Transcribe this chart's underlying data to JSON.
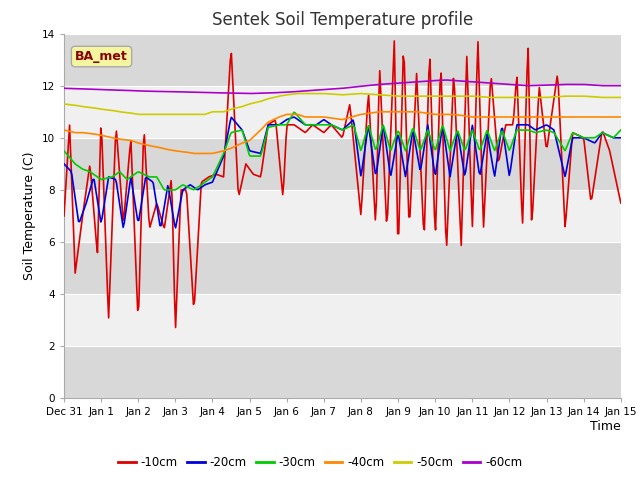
{
  "title": "Sentek Soil Temperature profile",
  "xlabel": "Time",
  "ylabel": "Soil Temperature (C)",
  "ylim": [
    0,
    14
  ],
  "yticks": [
    0,
    2,
    4,
    6,
    8,
    10,
    12,
    14
  ],
  "background_color": "#ffffff",
  "plot_bg_color": "#ffffff",
  "band_colors": [
    "#d8d8d8",
    "#f0f0f0"
  ],
  "legend_label": "BA_met",
  "legend_text_color": "#8b0000",
  "legend_box_facecolor": "#f5f5a0",
  "legend_box_edgecolor": "#aaaaaa",
  "colors": {
    "-10cm": "#dd0000",
    "-20cm": "#0000dd",
    "-30cm": "#00cc00",
    "-40cm": "#ff8800",
    "-50cm": "#cccc00",
    "-60cm": "#aa00cc"
  },
  "x_tick_labels": [
    "Dec 31",
    "Jan 1",
    "Jan 2",
    "Jan 3",
    "Jan 4",
    "Jan 5",
    "Jan 6",
    "Jan 7",
    "Jan 8",
    "Jan 9",
    "Jan 10",
    "Jan 11",
    "Jan 12",
    "Jan 13",
    "Jan 14",
    "Jan 15"
  ],
  "n_points": 500
}
